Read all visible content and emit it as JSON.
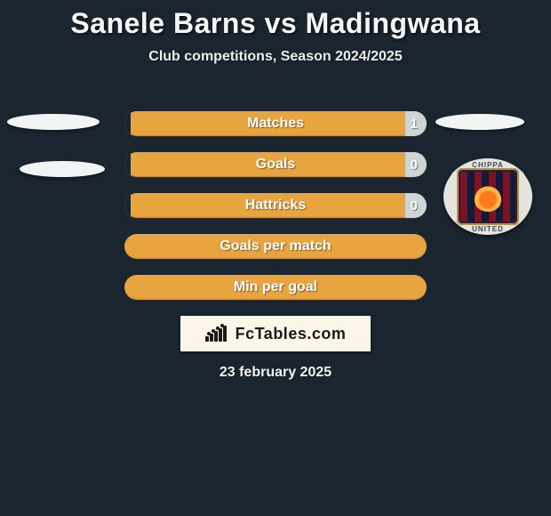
{
  "header": {
    "title": "Sanele Barns vs Madingwana",
    "subtitle": "Club competitions, Season 2024/2025"
  },
  "colors": {
    "background": "#1a252f",
    "bar_base": "#e7a43f",
    "bar_left_overlay": "#1a252f",
    "bar_right_overlay": "#cfd4d4",
    "text": "#ffffff"
  },
  "stats": {
    "rows": [
      {
        "label": "Matches",
        "left": "",
        "right": "1",
        "left_pct": 2,
        "right_pct": 7
      },
      {
        "label": "Goals",
        "left": "",
        "right": "0",
        "left_pct": 2,
        "right_pct": 7
      },
      {
        "label": "Hattricks",
        "left": "",
        "right": "0",
        "left_pct": 2,
        "right_pct": 7
      },
      {
        "label": "Goals per match",
        "left": "",
        "right": "",
        "left_pct": 0,
        "right_pct": 0
      },
      {
        "label": "Min per goal",
        "left": "",
        "right": "",
        "left_pct": 0,
        "right_pct": 0
      }
    ]
  },
  "badge": {
    "top_text": "CHIPPA",
    "bottom_text": "UNITED"
  },
  "brand": {
    "text": "FcTables.com"
  },
  "footer": {
    "date": "23 february 2025"
  }
}
